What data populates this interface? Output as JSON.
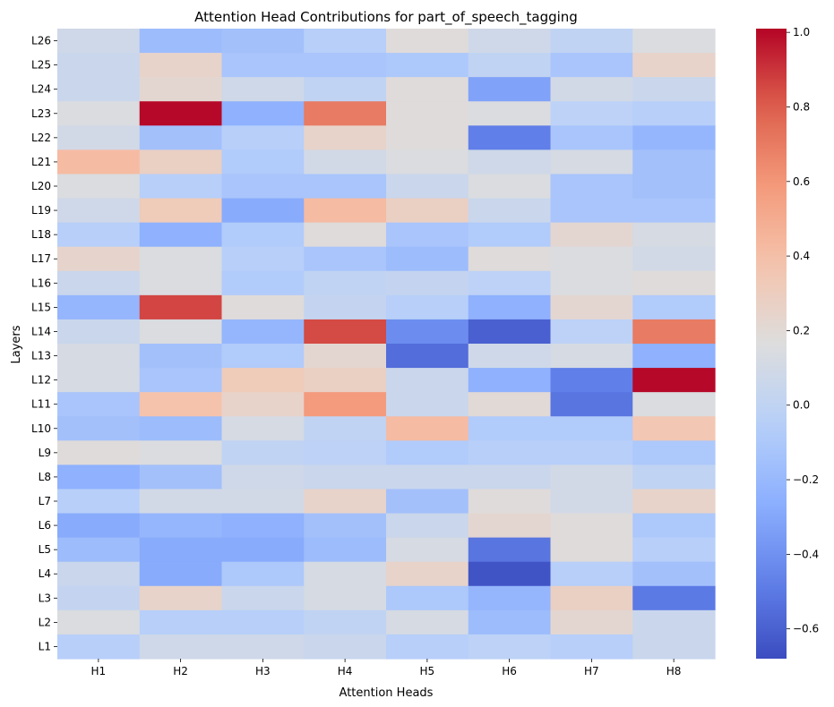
{
  "chart_data": {
    "type": "heatmap",
    "title": "Attention Head Contributions for part_of_speech_tagging",
    "xlabel": "Attention Heads",
    "ylabel": "Layers",
    "x_categories": [
      "H1",
      "H2",
      "H3",
      "H4",
      "H5",
      "H6",
      "H7",
      "H8"
    ],
    "y_categories": [
      "L26",
      "L25",
      "L24",
      "L23",
      "L22",
      "L21",
      "L20",
      "L19",
      "L18",
      "L17",
      "L16",
      "L15",
      "L14",
      "L13",
      "L12",
      "L11",
      "L10",
      "L9",
      "L8",
      "L7",
      "L6",
      "L5",
      "L4",
      "L3",
      "L2",
      "L1"
    ],
    "values": [
      [
        0.08,
        -0.18,
        -0.15,
        -0.05,
        0.18,
        0.08,
        0.0,
        0.15
      ],
      [
        0.05,
        0.25,
        -0.12,
        -0.12,
        -0.1,
        0.0,
        -0.12,
        0.25
      ],
      [
        0.05,
        0.22,
        0.08,
        0.0,
        0.18,
        -0.32,
        0.1,
        0.05
      ],
      [
        0.15,
        1.0,
        -0.25,
        0.7,
        0.18,
        0.15,
        -0.02,
        -0.05
      ],
      [
        0.1,
        -0.15,
        -0.05,
        0.25,
        0.18,
        -0.48,
        -0.12,
        -0.22
      ],
      [
        0.42,
        0.28,
        -0.08,
        0.1,
        0.15,
        0.08,
        0.12,
        -0.15
      ],
      [
        0.15,
        -0.05,
        -0.12,
        -0.12,
        0.05,
        0.15,
        -0.12,
        -0.15
      ],
      [
        0.08,
        0.32,
        -0.28,
        0.42,
        0.28,
        0.05,
        -0.12,
        -0.12
      ],
      [
        -0.05,
        -0.25,
        -0.08,
        0.18,
        -0.12,
        -0.08,
        0.22,
        0.12
      ],
      [
        0.24,
        0.15,
        -0.05,
        -0.12,
        -0.18,
        0.18,
        0.15,
        0.1
      ],
      [
        0.05,
        0.15,
        -0.08,
        0.0,
        0.02,
        -0.02,
        0.15,
        0.18
      ],
      [
        -0.22,
        0.86,
        0.18,
        0.02,
        -0.05,
        -0.25,
        0.22,
        -0.08
      ],
      [
        0.05,
        0.15,
        -0.22,
        0.85,
        -0.42,
        -0.6,
        -0.02,
        0.7
      ],
      [
        0.12,
        -0.15,
        -0.08,
        0.22,
        -0.55,
        0.08,
        0.12,
        -0.25
      ],
      [
        0.12,
        -0.12,
        0.32,
        0.28,
        0.05,
        -0.25,
        -0.48,
        1.0
      ],
      [
        -0.12,
        0.38,
        0.25,
        0.58,
        0.05,
        0.2,
        -0.52,
        0.15
      ],
      [
        -0.15,
        -0.18,
        0.12,
        0.0,
        0.42,
        -0.08,
        -0.08,
        0.35
      ],
      [
        0.18,
        0.15,
        0.0,
        -0.02,
        -0.08,
        -0.05,
        -0.05,
        -0.1
      ],
      [
        -0.25,
        -0.15,
        0.08,
        0.05,
        0.05,
        0.05,
        0.1,
        0.0
      ],
      [
        -0.05,
        0.1,
        0.1,
        0.25,
        -0.15,
        0.18,
        0.1,
        0.25
      ],
      [
        -0.28,
        -0.22,
        -0.25,
        -0.15,
        0.05,
        0.22,
        0.18,
        -0.1
      ],
      [
        -0.18,
        -0.28,
        -0.28,
        -0.18,
        0.12,
        -0.52,
        0.18,
        -0.05
      ],
      [
        0.05,
        -0.28,
        -0.1,
        0.12,
        0.25,
        -0.65,
        -0.05,
        -0.15
      ],
      [
        0.02,
        0.25,
        0.05,
        0.12,
        -0.1,
        -0.22,
        0.28,
        -0.5
      ],
      [
        0.15,
        -0.05,
        -0.05,
        0.0,
        0.12,
        -0.18,
        0.22,
        0.05
      ],
      [
        -0.05,
        0.08,
        0.08,
        0.05,
        -0.05,
        -0.02,
        -0.05,
        0.05
      ]
    ],
    "vmin": -0.68,
    "vmax": 1.01,
    "colormap": "coolwarm",
    "colorbar_ticks": [
      1.0,
      0.8,
      0.6,
      0.4,
      0.2,
      0.0,
      -0.2,
      -0.4,
      -0.6
    ],
    "colorbar_tick_labels": [
      "1.0",
      "0.8",
      "0.6",
      "0.4",
      "0.2",
      "0.0",
      "−0.2",
      "−0.4",
      "−0.6"
    ]
  }
}
